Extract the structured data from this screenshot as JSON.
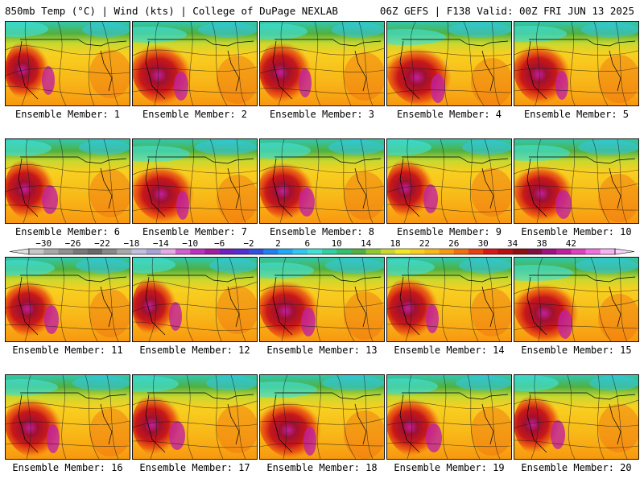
{
  "header": {
    "left": "850mb Temp (°C) | Wind (kts) | College of DuPage NEXLAB",
    "right": "06Z GEFS | F138 Valid: 00Z FRI JUN 13 2025"
  },
  "panels": [
    {
      "label": "Ensemble Member: 1"
    },
    {
      "label": "Ensemble Member: 2"
    },
    {
      "label": "Ensemble Member: 3"
    },
    {
      "label": "Ensemble Member: 4"
    },
    {
      "label": "Ensemble Member: 5"
    },
    {
      "label": "Ensemble Member: 6"
    },
    {
      "label": "Ensemble Member: 7"
    },
    {
      "label": "Ensemble Member: 8"
    },
    {
      "label": "Ensemble Member: 9"
    },
    {
      "label": "Ensemble Member: 10"
    },
    {
      "label": "Ensemble Member: 11"
    },
    {
      "label": "Ensemble Member: 12"
    },
    {
      "label": "Ensemble Member: 13"
    },
    {
      "label": "Ensemble Member: 14"
    },
    {
      "label": "Ensemble Member: 15"
    },
    {
      "label": "Ensemble Member: 16"
    },
    {
      "label": "Ensemble Member: 17"
    },
    {
      "label": "Ensemble Member: 18"
    },
    {
      "label": "Ensemble Member: 19"
    },
    {
      "label": "Ensemble Member: 20"
    }
  ],
  "colorbar": {
    "ticks": [
      "-30",
      "-26",
      "-22",
      "-18",
      "-14",
      "-10",
      "-6",
      "-2",
      "2",
      "6",
      "10",
      "14",
      "18",
      "22",
      "26",
      "30",
      "34",
      "38",
      "42"
    ],
    "colors": [
      "#c8c8c8",
      "#a8a8a8",
      "#909090",
      "#787878",
      "#686868",
      "#888888",
      "#a8a8a8",
      "#c0c0e0",
      "#a8a0d8",
      "#e8a8e8",
      "#d060d0",
      "#c030c0",
      "#a020a0",
      "#7020c0",
      "#5030d0",
      "#3050e0",
      "#2080f0",
      "#20a8f8",
      "#30c8f0",
      "#40e0d8",
      "#30d0a0",
      "#30c070",
      "#50b040",
      "#90c830",
      "#c8d830",
      "#f0e820",
      "#f8d020",
      "#f8b818",
      "#f89810",
      "#f07010",
      "#e84010",
      "#d81818",
      "#b81010",
      "#901010",
      "#801040",
      "#a01080",
      "#c020a0",
      "#e040c0",
      "#f070e0",
      "#f8b0f0"
    ]
  }
}
